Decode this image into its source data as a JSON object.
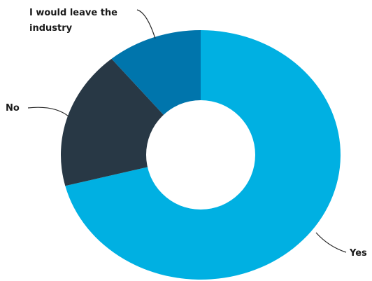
{
  "chart_data": {
    "type": "pie",
    "variant": "donut",
    "categories": [
      "Yes",
      "No",
      "I would leave the industry"
    ],
    "values": [
      71,
      18,
      11
    ],
    "colors": [
      "#00b0e2",
      "#283845",
      "#0075ac"
    ],
    "label_lines": [
      [
        "Yes"
      ],
      [
        "No"
      ],
      [
        "I would leave the",
        "industry"
      ]
    ],
    "title": "",
    "legend": "none"
  }
}
